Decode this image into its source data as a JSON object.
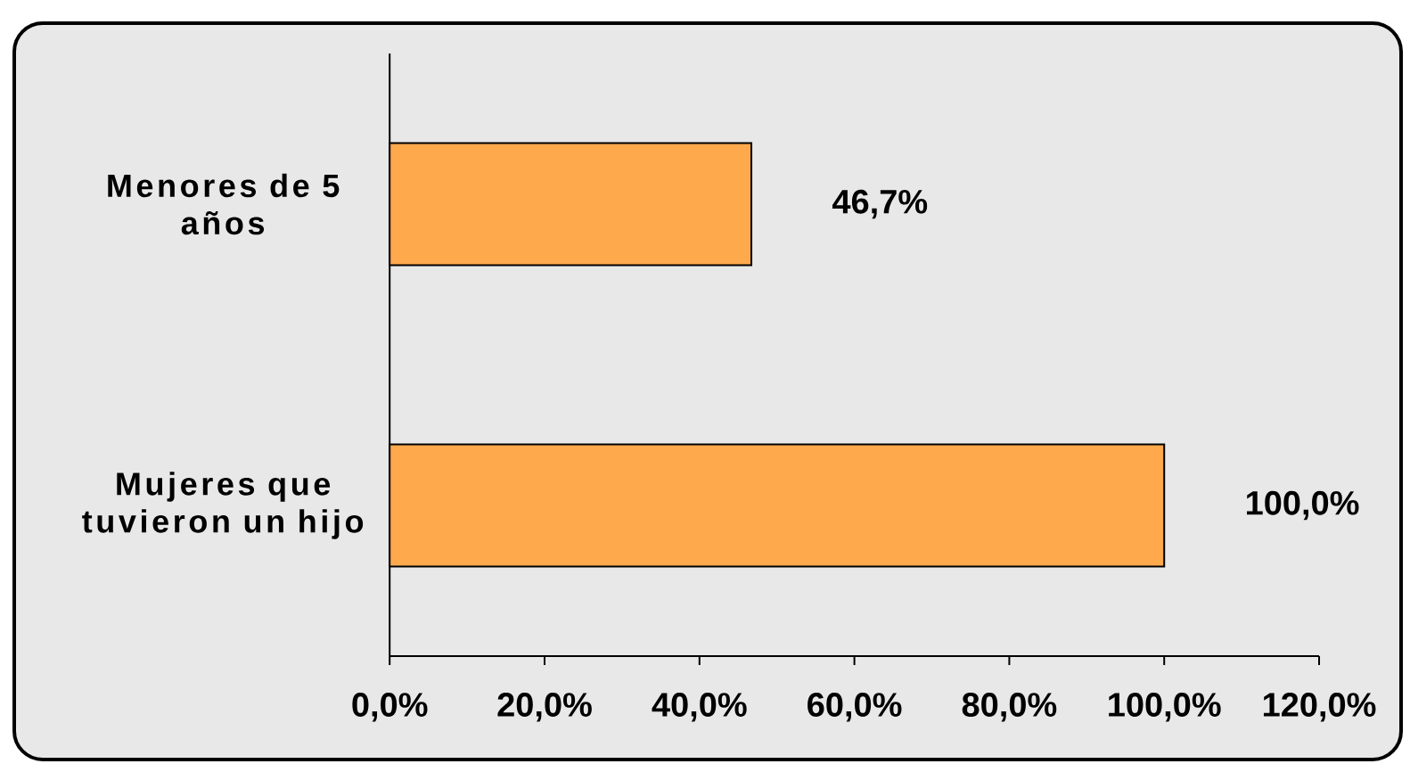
{
  "chart_data": {
    "type": "bar",
    "orientation": "horizontal",
    "categories": [
      "Menores de 5 años",
      "Mujeres que tuvieron un hijo"
    ],
    "values": [
      46.7,
      100.0
    ],
    "color": "#ffa94d",
    "value_labels": [
      "46,7%",
      "100,0%"
    ],
    "xlim": [
      0,
      120
    ],
    "xticks": [
      {
        "value": 0,
        "label": "0,0%"
      },
      {
        "value": 20,
        "label": "20,0%"
      },
      {
        "value": 40,
        "label": "40,0%"
      },
      {
        "value": 60,
        "label": "60,0%"
      },
      {
        "value": 80,
        "label": "80,0%"
      },
      {
        "value": 100,
        "label": "100,0%"
      },
      {
        "value": 120,
        "label": "120,0%"
      }
    ]
  }
}
